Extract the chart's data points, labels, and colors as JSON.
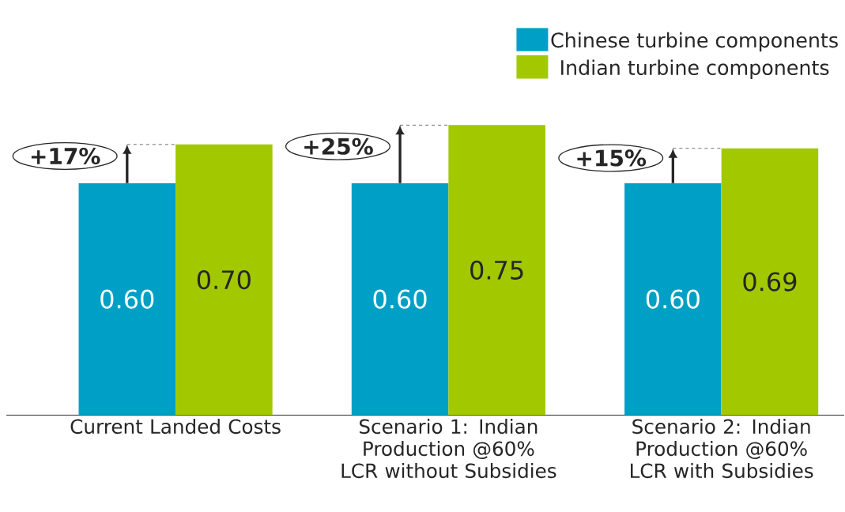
{
  "chart_data": {
    "type": "bar",
    "categories": [
      "Current Landed Costs",
      "Scenario 1: Indian Production @60% LCR without Subsidies",
      "Scenario 2: Indian Production @60% LCR with Subsidies"
    ],
    "series": [
      {
        "name": "Chinese turbine components",
        "color": "#00a0c6",
        "values": [
          0.6,
          0.6,
          0.6
        ],
        "value_labels": [
          "0.60",
          "0.60",
          "0.60"
        ]
      },
      {
        "name": "Indian turbine components",
        "color": "#a2c800",
        "values": [
          0.7,
          0.75,
          0.69
        ],
        "value_labels": [
          "0.70",
          "0.75",
          "0.69"
        ]
      }
    ],
    "annotations": [
      "+17%",
      "+25%",
      "+15%"
    ],
    "legend": "top right"
  }
}
